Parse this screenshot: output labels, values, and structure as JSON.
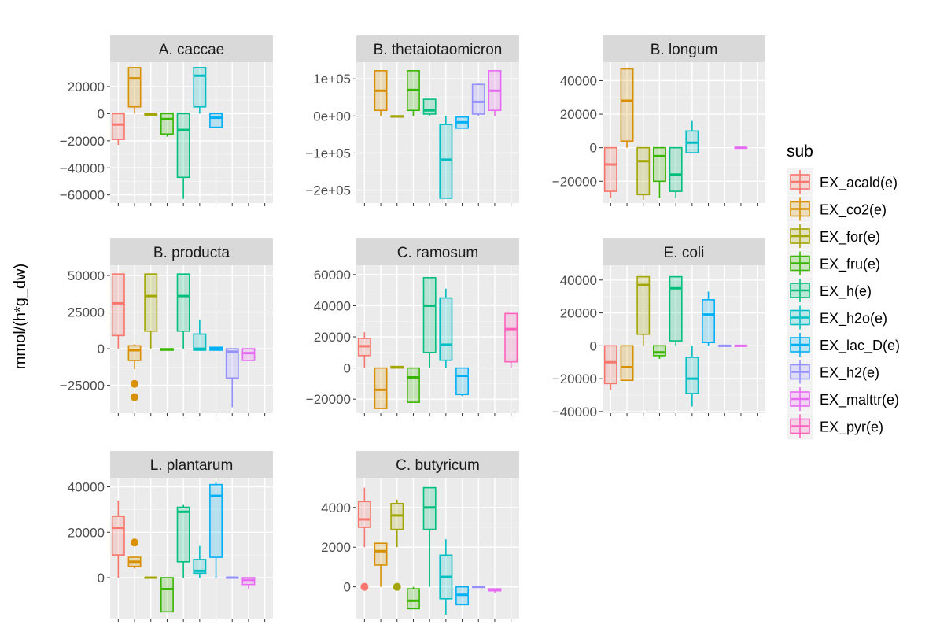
{
  "chart_data": {
    "type": "box",
    "ylabel": "mmol/(h*g_dw)",
    "xlabel": "",
    "legend": {
      "title": "sub",
      "position": "right",
      "entries": [
        {
          "name": "EX_acald(e)",
          "color": "#F8766D"
        },
        {
          "name": "EX_co2(e)",
          "color": "#D89000"
        },
        {
          "name": "EX_for(e)",
          "color": "#A3A500"
        },
        {
          "name": "EX_fru(e)",
          "color": "#39B600"
        },
        {
          "name": "EX_h(e)",
          "color": "#00BF7D"
        },
        {
          "name": "EX_h2o(e)",
          "color": "#00BFC4"
        },
        {
          "name": "EX_lac_D(e)",
          "color": "#00B0F6"
        },
        {
          "name": "EX_h2(e)",
          "color": "#9590FF"
        },
        {
          "name": "EX_malttr(e)",
          "color": "#E76BF3"
        },
        {
          "name": "EX_pyr(e)",
          "color": "#FF62BC"
        }
      ]
    },
    "panels": [
      {
        "title": "A. caccae",
        "ylim": [
          -66000,
          38000
        ],
        "yticks": [
          20000,
          0,
          -20000,
          -40000,
          -60000
        ],
        "yticklabels": [
          "20000",
          "0",
          "−20000",
          "−40000",
          "−60000"
        ],
        "boxes": [
          {
            "sub": 0,
            "min": -23000,
            "q1": -19000,
            "median": -8000,
            "q3": 0,
            "max": 0,
            "outliers": []
          },
          {
            "sub": 1,
            "min": 0,
            "q1": 5000,
            "median": 26000,
            "q3": 34000,
            "max": 34000,
            "outliers": []
          },
          {
            "sub": 2,
            "min": -1000,
            "q1": -1000,
            "median": -500,
            "q3": 0,
            "max": 0,
            "outliers": []
          },
          {
            "sub": 3,
            "min": -17000,
            "q1": -15000,
            "median": -4000,
            "q3": 0,
            "max": 0,
            "outliers": []
          },
          {
            "sub": 4,
            "min": -63000,
            "q1": -47000,
            "median": -12000,
            "q3": 0,
            "max": 0,
            "outliers": []
          },
          {
            "sub": 5,
            "min": 0,
            "q1": 5000,
            "median": 28000,
            "q3": 34000,
            "max": 34000,
            "outliers": []
          },
          {
            "sub": 6,
            "min": -10000,
            "q1": -10000,
            "median": -3000,
            "q3": 0,
            "max": 0,
            "outliers": []
          }
        ]
      },
      {
        "title": "B. thetaiotaomicron",
        "ylim": [
          -235000,
          145000
        ],
        "yticks": [
          100000,
          0,
          -100000,
          -200000
        ],
        "yticklabels": [
          "1e+05",
          "0e+00",
          "−1e+05",
          "−2e+05"
        ],
        "boxes": [
          {
            "sub": 1,
            "min": 0,
            "q1": 15000,
            "median": 68000,
            "q3": 122000,
            "max": 122000,
            "outliers": []
          },
          {
            "sub": 2,
            "min": -3000,
            "q1": -3000,
            "median": -1000,
            "q3": 0,
            "max": 0,
            "outliers": []
          },
          {
            "sub": 3,
            "min": 0,
            "q1": 15000,
            "median": 70000,
            "q3": 122000,
            "max": 122000,
            "outliers": []
          },
          {
            "sub": 4,
            "min": 0,
            "q1": 5000,
            "median": 15000,
            "q3": 45000,
            "max": 45000,
            "outliers": []
          },
          {
            "sub": 5,
            "min": -222000,
            "q1": -222000,
            "median": -118000,
            "q3": -23000,
            "max": 0,
            "outliers": []
          },
          {
            "sub": 6,
            "min": -33000,
            "q1": -33000,
            "median": -17000,
            "q3": -3000,
            "max": 0,
            "outliers": []
          },
          {
            "sub": 7,
            "min": 0,
            "q1": 5000,
            "median": 38000,
            "q3": 85000,
            "max": 88000,
            "outliers": []
          },
          {
            "sub": 8,
            "min": 0,
            "q1": 15000,
            "median": 68000,
            "q3": 122000,
            "max": 122000,
            "outliers": []
          }
        ]
      },
      {
        "title": "B. longum",
        "ylim": [
          -33000,
          51000
        ],
        "yticks": [
          40000,
          20000,
          0,
          -20000
        ],
        "yticklabels": [
          "40000",
          "20000",
          "0",
          "−20000"
        ],
        "boxes": [
          {
            "sub": 0,
            "min": -30000,
            "q1": -26000,
            "median": -10000,
            "q3": 0,
            "max": 0,
            "outliers": []
          },
          {
            "sub": 1,
            "min": 0,
            "q1": 4000,
            "median": 28000,
            "q3": 47000,
            "max": 47000,
            "outliers": []
          },
          {
            "sub": 2,
            "min": -31000,
            "q1": -28000,
            "median": -8000,
            "q3": 0,
            "max": 0,
            "outliers": []
          },
          {
            "sub": 3,
            "min": -30000,
            "q1": -20000,
            "median": -5000,
            "q3": 0,
            "max": 0,
            "outliers": []
          },
          {
            "sub": 4,
            "min": -30000,
            "q1": -26000,
            "median": -16000,
            "q3": 0,
            "max": 0,
            "outliers": []
          },
          {
            "sub": 5,
            "min": -3000,
            "q1": -3000,
            "median": 3000,
            "q3": 10000,
            "max": 16000,
            "outliers": []
          },
          {
            "sub": 8,
            "min": 0,
            "q1": 0,
            "median": 0,
            "q3": 0,
            "max": 0,
            "outliers": []
          }
        ]
      },
      {
        "title": "B. producta",
        "ylim": [
          -44000,
          57000
        ],
        "yticks": [
          50000,
          25000,
          0,
          -25000
        ],
        "yticklabels": [
          "50000",
          "25000",
          "0",
          "−25000"
        ],
        "boxes": [
          {
            "sub": 0,
            "min": 0,
            "q1": 9000,
            "median": 31000,
            "q3": 51000,
            "max": 51000,
            "outliers": []
          },
          {
            "sub": 1,
            "min": -14000,
            "q1": -8000,
            "median": -1000,
            "q3": 2000,
            "max": 3000,
            "outliers": [
              -24000,
              -33000
            ]
          },
          {
            "sub": 2,
            "min": 0,
            "q1": 12000,
            "median": 36000,
            "q3": 51000,
            "max": 51000,
            "outliers": []
          },
          {
            "sub": 3,
            "min": -1000,
            "q1": -1000,
            "median": -500,
            "q3": 0,
            "max": 0,
            "outliers": []
          },
          {
            "sub": 4,
            "min": 0,
            "q1": 12000,
            "median": 36000,
            "q3": 51000,
            "max": 51000,
            "outliers": []
          },
          {
            "sub": 5,
            "min": -1000,
            "q1": -1000,
            "median": 0,
            "q3": 10000,
            "max": 20000,
            "outliers": []
          },
          {
            "sub": 6,
            "min": -1000,
            "q1": -1000,
            "median": 0,
            "q3": 1000,
            "max": 1000,
            "outliers": []
          },
          {
            "sub": 7,
            "min": -40000,
            "q1": -20000,
            "median": -2000,
            "q3": 0,
            "max": 0,
            "outliers": []
          },
          {
            "sub": 8,
            "min": -8000,
            "q1": -8000,
            "median": -3000,
            "q3": 0,
            "max": 0,
            "outliers": []
          }
        ]
      },
      {
        "title": "C. ramosum",
        "ylim": [
          -29000,
          66000
        ],
        "yticks": [
          60000,
          40000,
          20000,
          0,
          -20000
        ],
        "yticklabels": [
          "60000",
          "40000",
          "20000",
          "0",
          "−20000"
        ],
        "boxes": [
          {
            "sub": 0,
            "min": 0,
            "q1": 8000,
            "median": 14000,
            "q3": 19000,
            "max": 23000,
            "outliers": []
          },
          {
            "sub": 1,
            "min": -26000,
            "q1": -26000,
            "median": -14000,
            "q3": 0,
            "max": 0,
            "outliers": []
          },
          {
            "sub": 2,
            "min": 0,
            "q1": 0,
            "median": 500,
            "q3": 1000,
            "max": 1000,
            "outliers": []
          },
          {
            "sub": 3,
            "min": -22000,
            "q1": -22000,
            "median": -6000,
            "q3": 0,
            "max": 0,
            "outliers": []
          },
          {
            "sub": 4,
            "min": 0,
            "q1": 10000,
            "median": 40000,
            "q3": 58000,
            "max": 58000,
            "outliers": []
          },
          {
            "sub": 5,
            "min": 0,
            "q1": 5000,
            "median": 15000,
            "q3": 45000,
            "max": 51000,
            "outliers": []
          },
          {
            "sub": 6,
            "min": -18000,
            "q1": -17000,
            "median": -5000,
            "q3": 0,
            "max": 0,
            "outliers": []
          },
          {
            "sub": 9,
            "min": 0,
            "q1": 4000,
            "median": 25000,
            "q3": 35000,
            "max": 35000,
            "outliers": []
          }
        ]
      },
      {
        "title": "E. coli",
        "ylim": [
          -41000,
          49000
        ],
        "yticks": [
          40000,
          20000,
          0,
          -20000,
          -40000
        ],
        "yticklabels": [
          "40000",
          "20000",
          "0",
          "−20000",
          "−40000"
        ],
        "boxes": [
          {
            "sub": 0,
            "min": -27000,
            "q1": -23000,
            "median": -10000,
            "q3": 0,
            "max": 0,
            "outliers": []
          },
          {
            "sub": 1,
            "min": -21000,
            "q1": -21000,
            "median": -13000,
            "q3": 0,
            "max": 0,
            "outliers": []
          },
          {
            "sub": 2,
            "min": 0,
            "q1": 7000,
            "median": 37000,
            "q3": 42000,
            "max": 42000,
            "outliers": []
          },
          {
            "sub": 3,
            "min": -8000,
            "q1": -6000,
            "median": -4000,
            "q3": 0,
            "max": 0,
            "outliers": []
          },
          {
            "sub": 4,
            "min": 0,
            "q1": 3000,
            "median": 35000,
            "q3": 42000,
            "max": 42000,
            "outliers": []
          },
          {
            "sub": 5,
            "min": -37000,
            "q1": -29000,
            "median": -20000,
            "q3": -7000,
            "max": 0,
            "outliers": []
          },
          {
            "sub": 6,
            "min": 0,
            "q1": 2000,
            "median": 19000,
            "q3": 28000,
            "max": 33000,
            "outliers": []
          },
          {
            "sub": 7,
            "min": 0,
            "q1": 0,
            "median": 0,
            "q3": 0,
            "max": 0,
            "outliers": []
          },
          {
            "sub": 8,
            "min": 0,
            "q1": 0,
            "median": 0,
            "q3": 0,
            "max": 0,
            "outliers": []
          }
        ]
      },
      {
        "title": "L. plantarum",
        "ylim": [
          -18000,
          44000
        ],
        "yticks": [
          40000,
          20000,
          0
        ],
        "yticklabels": [
          "40000",
          "20000",
          "0"
        ],
        "boxes": [
          {
            "sub": 0,
            "min": 0,
            "q1": 10000,
            "median": 22000,
            "q3": 27000,
            "max": 34000,
            "outliers": []
          },
          {
            "sub": 1,
            "min": 4000,
            "q1": 5000,
            "median": 7000,
            "q3": 9000,
            "max": 9000,
            "outliers": [
              15500
            ]
          },
          {
            "sub": 2,
            "min": 0,
            "q1": 0,
            "median": 0,
            "q3": 0,
            "max": 0,
            "outliers": []
          },
          {
            "sub": 3,
            "min": -15000,
            "q1": -15000,
            "median": -5000,
            "q3": 0,
            "max": 0,
            "outliers": []
          },
          {
            "sub": 4,
            "min": 0,
            "q1": 7000,
            "median": 29000,
            "q3": 31000,
            "max": 32000,
            "outliers": []
          },
          {
            "sub": 5,
            "min": 0,
            "q1": 2000,
            "median": 3000,
            "q3": 8000,
            "max": 14000,
            "outliers": []
          },
          {
            "sub": 6,
            "min": 0,
            "q1": 9000,
            "median": 36000,
            "q3": 41000,
            "max": 42000,
            "outliers": []
          },
          {
            "sub": 7,
            "min": 0,
            "q1": 0,
            "median": 0,
            "q3": 0,
            "max": 0,
            "outliers": []
          },
          {
            "sub": 8,
            "min": -5000,
            "q1": -3000,
            "median": -1000,
            "q3": 0,
            "max": 0,
            "outliers": []
          }
        ]
      },
      {
        "title": "C. butyricum",
        "ylim": [
          -1600,
          5500
        ],
        "yticks": [
          4000,
          2000,
          0
        ],
        "yticklabels": [
          "4000",
          "2000",
          "0"
        ],
        "boxes": [
          {
            "sub": 0,
            "min": 2000,
            "q1": 3000,
            "median": 3400,
            "q3": 4300,
            "max": 5000,
            "outliers": [
              0
            ]
          },
          {
            "sub": 1,
            "min": 0,
            "q1": 1100,
            "median": 1800,
            "q3": 2200,
            "max": 2200,
            "outliers": []
          },
          {
            "sub": 2,
            "min": 2000,
            "q1": 2900,
            "median": 3600,
            "q3": 4200,
            "max": 4400,
            "outliers": [
              0
            ]
          },
          {
            "sub": 3,
            "min": -1100,
            "q1": -1100,
            "median": -700,
            "q3": -100,
            "max": 0,
            "outliers": []
          },
          {
            "sub": 4,
            "min": 0,
            "q1": 2900,
            "median": 4000,
            "q3": 5000,
            "max": 5000,
            "outliers": []
          },
          {
            "sub": 5,
            "min": -1400,
            "q1": -600,
            "median": 500,
            "q3": 1600,
            "max": 2400,
            "outliers": []
          },
          {
            "sub": 6,
            "min": -900,
            "q1": -900,
            "median": -400,
            "q3": 0,
            "max": 0,
            "outliers": []
          },
          {
            "sub": 7,
            "min": 0,
            "q1": 0,
            "median": 0,
            "q3": 0,
            "max": 0,
            "outliers": []
          },
          {
            "sub": 8,
            "min": -300,
            "q1": -200,
            "median": -150,
            "q3": -100,
            "max": -100,
            "outliers": []
          }
        ]
      }
    ]
  }
}
